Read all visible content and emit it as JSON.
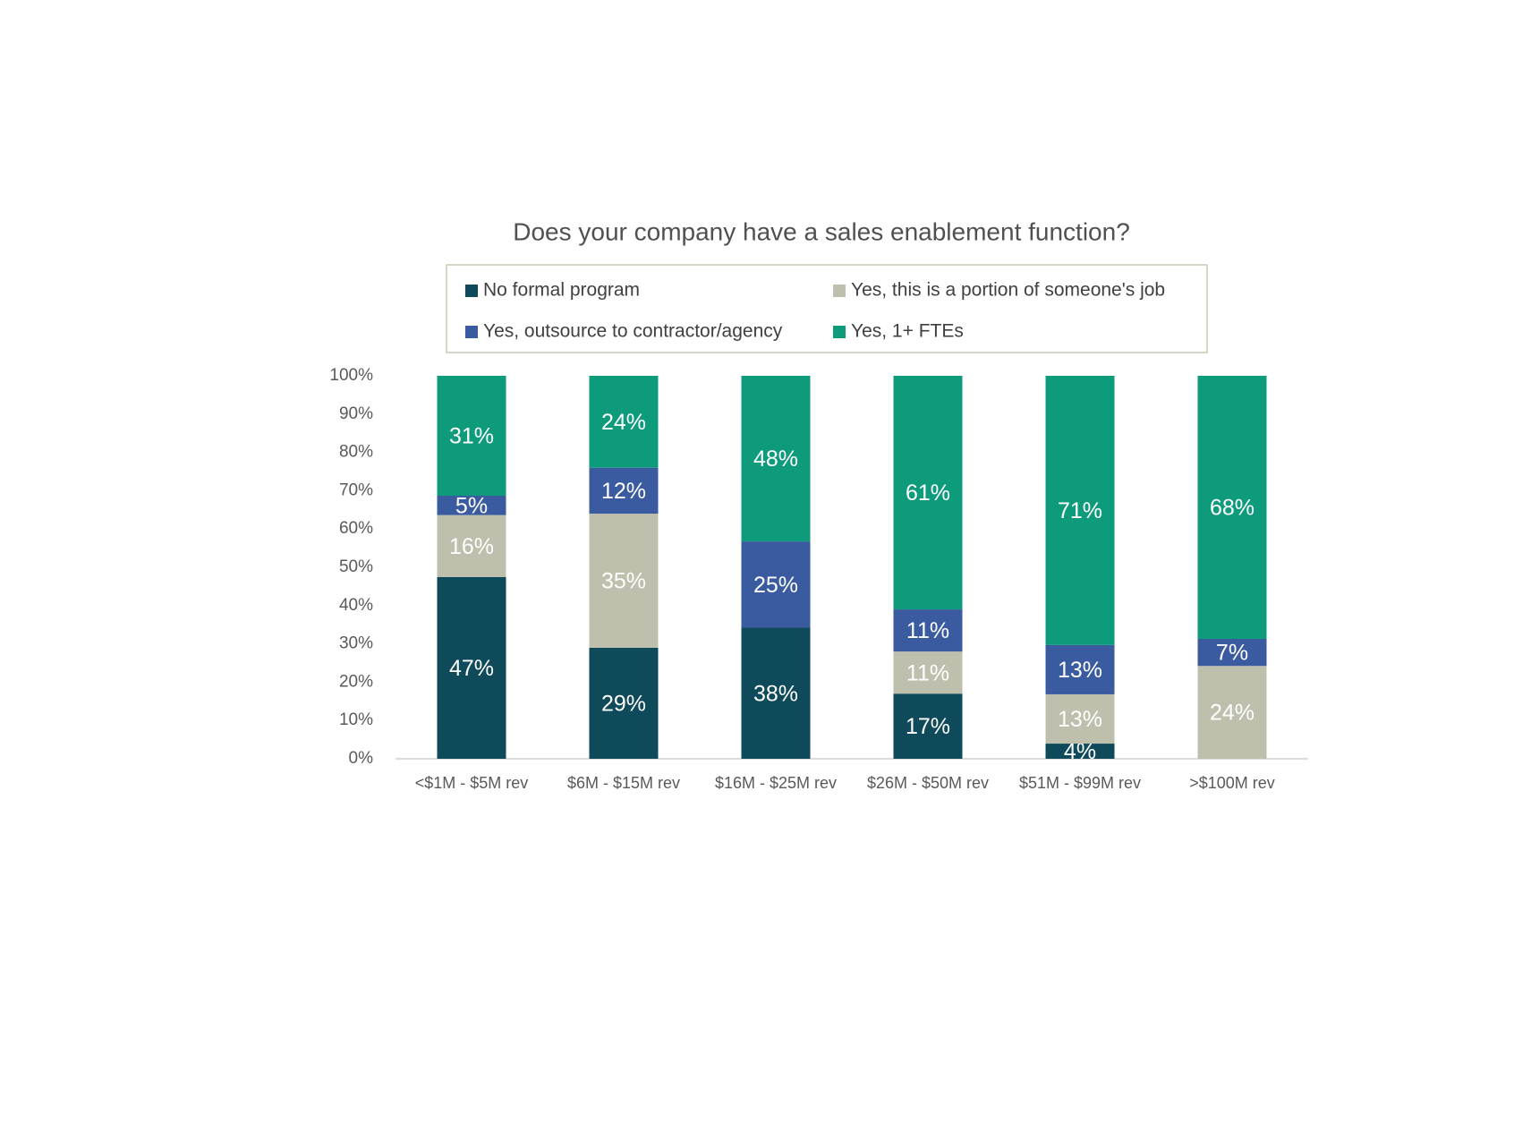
{
  "chart_data": {
    "type": "bar",
    "stacking": "percent",
    "title": "Does your company have a sales enablement function?",
    "categories": [
      "<$1M - $5M rev",
      "$6M - $15M rev",
      "$16M - $25M rev",
      "$26M - $50M rev",
      "$51M - $99M rev",
      ">$100M rev"
    ],
    "series": [
      {
        "name": "No formal program",
        "color": "#0e4a5a",
        "values": [
          47,
          29,
          38,
          17,
          4,
          null
        ],
        "value_labels": [
          "47%",
          "29%",
          "38%",
          "17%",
          "4%",
          null
        ]
      },
      {
        "name": "Yes, this is a portion of someone's job",
        "color": "#bfbfae",
        "values": [
          16,
          35,
          null,
          11,
          13,
          24
        ],
        "value_labels": [
          "16%",
          "35%",
          null,
          "11%",
          "13%",
          "24%"
        ]
      },
      {
        "name": "Yes, outsource to contractor/agency",
        "color": "#3a5ba0",
        "values": [
          5,
          12,
          25,
          11,
          13,
          7
        ],
        "value_labels": [
          "5%",
          "12%",
          "25%",
          "11%",
          "13%",
          "7%"
        ]
      },
      {
        "name": "Yes, 1+ FTEs",
        "color": "#0e9b7c",
        "values": [
          31,
          24,
          48,
          61,
          71,
          68
        ],
        "value_labels": [
          "31%",
          "24%",
          "48%",
          "61%",
          "71%",
          "68%"
        ]
      }
    ],
    "ylim": [
      0,
      100
    ],
    "yticks": [
      {
        "value": 0,
        "label": "0%"
      },
      {
        "value": 10,
        "label": "10%"
      },
      {
        "value": 20,
        "label": "20%"
      },
      {
        "value": 30,
        "label": "30%"
      },
      {
        "value": 40,
        "label": "40%"
      },
      {
        "value": 50,
        "label": "50%"
      },
      {
        "value": 60,
        "label": "60%"
      },
      {
        "value": 70,
        "label": "70%"
      },
      {
        "value": 80,
        "label": "80%"
      },
      {
        "value": 90,
        "label": "90%"
      },
      {
        "value": 100,
        "label": "100%"
      }
    ],
    "legend": "top"
  }
}
